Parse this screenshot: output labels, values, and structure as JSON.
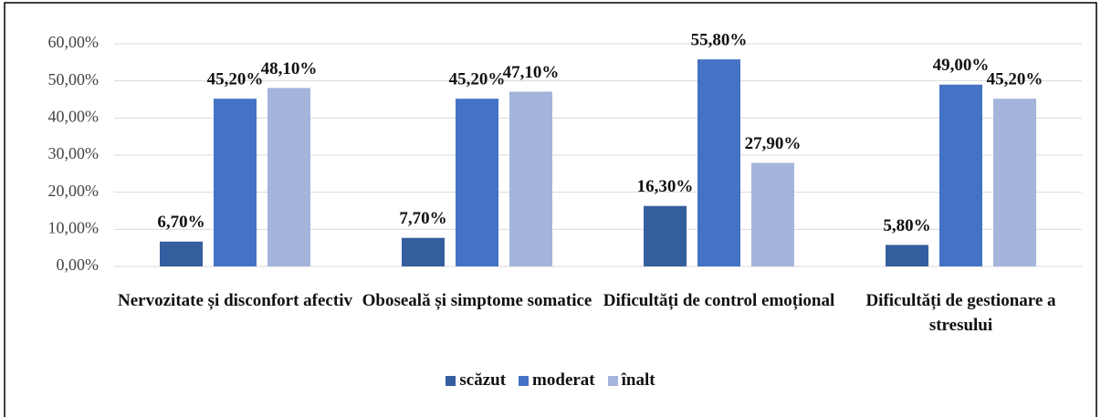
{
  "chart_data": {
    "type": "bar",
    "categories": [
      "Nervozitate și disconfort afectiv",
      "Oboseală și simptome somatice",
      "Dificultăți de control emoțional",
      "Dificultăți de gestionare a stresului"
    ],
    "series": [
      {
        "name": "scăzut",
        "color": "#355e9f",
        "values": [
          6.7,
          7.7,
          16.3,
          5.8
        ],
        "value_labels": [
          "6,70%",
          "7,70%",
          "16,30%",
          "5,80%"
        ]
      },
      {
        "name": "moderat",
        "color": "#4472c4",
        "values": [
          45.2,
          45.2,
          55.8,
          49.0
        ],
        "value_labels": [
          "45,20%",
          "45,20%",
          "55,80%",
          "49,00%"
        ]
      },
      {
        "name": "înalt",
        "color": "#a5b4db",
        "values": [
          48.1,
          47.1,
          27.9,
          45.2
        ],
        "value_labels": [
          "48,10%",
          "47,10%",
          "27,90%",
          "45,20%"
        ]
      }
    ],
    "ylim": [
      0,
      60
    ],
    "yticks": [
      {
        "value": 0,
        "label": "0,00%"
      },
      {
        "value": 10,
        "label": "10,00%"
      },
      {
        "value": 20,
        "label": "20,00%"
      },
      {
        "value": 30,
        "label": "30,00%"
      },
      {
        "value": 40,
        "label": "40,00%"
      },
      {
        "value": 50,
        "label": "50,00%"
      },
      {
        "value": 60,
        "label": "60,00%"
      }
    ],
    "grid": true,
    "legend": "bottom"
  }
}
